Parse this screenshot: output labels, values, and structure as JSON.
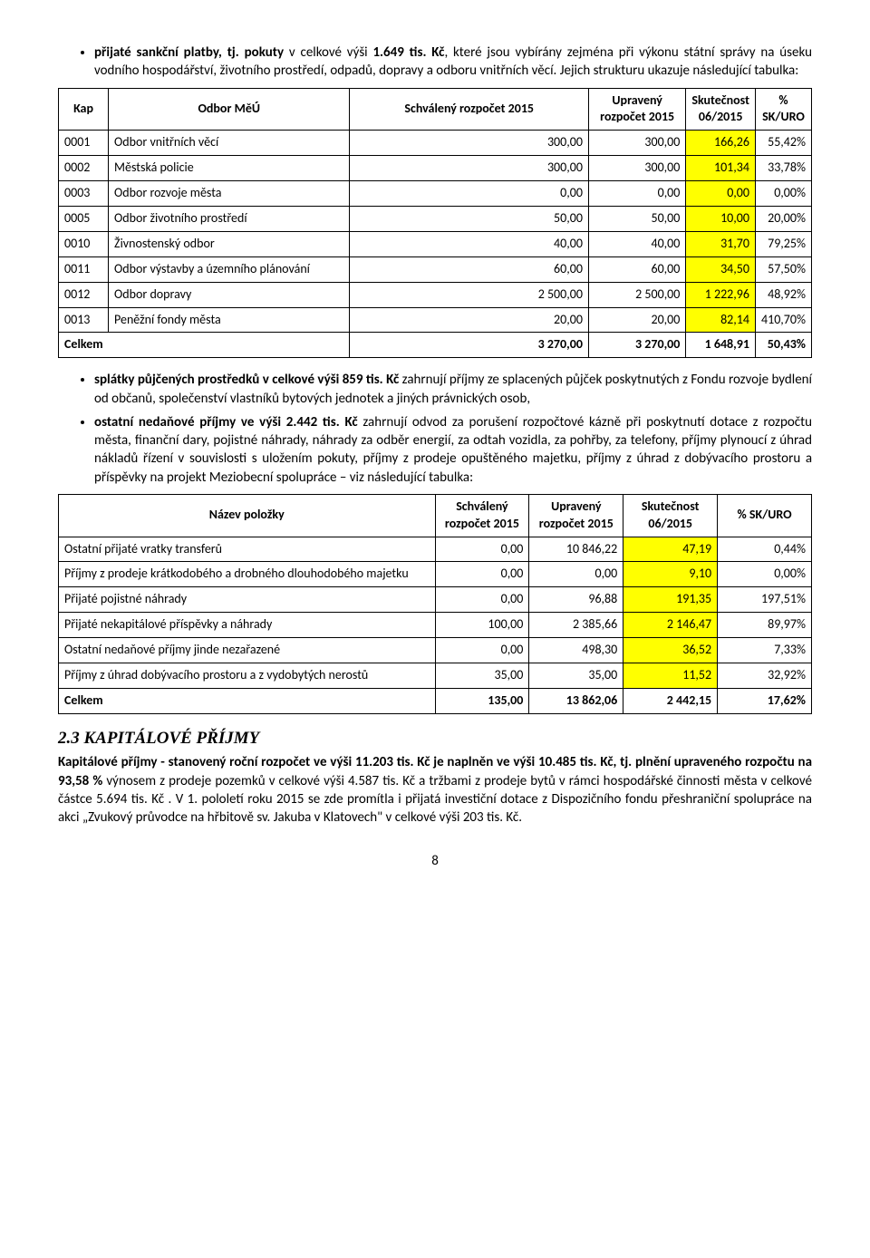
{
  "bullet1": {
    "strong": "přijaté sankční platby, tj. pokuty",
    "mid": " v celkové výši ",
    "amount": "1.649 tis. Kč",
    "rest": ", které jsou vybírány zejména při výkonu státní správy na úseku vodního hospodářství, životního prostředí, odpadů, dopravy a odboru vnitřních věcí. Jejich strukturu ukazuje následující tabulka:"
  },
  "table1": {
    "headers": [
      "Kap",
      "Odbor MěÚ",
      "Schválený rozpočet 2015",
      "Upravený rozpočet 2015",
      "Skutečnost 06/2015",
      "% SK/URO"
    ],
    "rows": [
      {
        "c": [
          "0001",
          "Odbor vnitřních věcí",
          "300,00",
          "300,00",
          "166,26",
          "55,42%"
        ]
      },
      {
        "c": [
          "0002",
          "Městská policie",
          "300,00",
          "300,00",
          "101,34",
          "33,78%"
        ]
      },
      {
        "c": [
          "0003",
          "Odbor rozvoje města",
          "0,00",
          "0,00",
          "0,00",
          "0,00%"
        ]
      },
      {
        "c": [
          "0005",
          "Odbor životního prostředí",
          "50,00",
          "50,00",
          "10,00",
          "20,00%"
        ]
      },
      {
        "c": [
          "0010",
          "Živnostenský odbor",
          "40,00",
          "40,00",
          "31,70",
          "79,25%"
        ]
      },
      {
        "c": [
          "0011",
          "Odbor výstavby a územního plánování",
          "60,00",
          "60,00",
          "34,50",
          "57,50%"
        ]
      },
      {
        "c": [
          "0012",
          "Odbor dopravy",
          "2 500,00",
          "2 500,00",
          "1 222,96",
          "48,92%"
        ]
      },
      {
        "c": [
          "0013",
          "Peněžní fondy města",
          "20,00",
          "20,00",
          "82,14",
          "410,70%"
        ]
      }
    ],
    "total": {
      "c": [
        "",
        "Celkem",
        "3 270,00",
        "3 270,00",
        "1 648,91",
        "50,43%"
      ]
    }
  },
  "bullet2": {
    "strong": "splátky půjčených prostředků v celkové výši 859 tis. Kč",
    "rest": " zahrnují příjmy ze splacených půjček poskytnutých z Fondu rozvoje bydlení od občanů, společenství vlastníků bytových jednotek a jiných právnických osob,"
  },
  "bullet3": {
    "strong": "ostatní nedaňové příjmy ve výši 2.442 tis. Kč",
    "rest": " zahrnují odvod za porušení rozpočtové kázně při poskytnutí dotace z rozpočtu města, finanční dary, pojistné náhrady, náhrady za odběr energií, za odtah vozidla, za pohřby, za telefony, příjmy plynoucí z úhrad nákladů řízení v souvislosti s uložením pokuty, příjmy z prodeje opuštěného majetku, příjmy z úhrad z dobývacího prostoru a příspěvky na projekt Meziobecní spolupráce – viz následující tabulka:"
  },
  "table2": {
    "headers": [
      "Název položky",
      "Schválený rozpočet 2015",
      "Upravený rozpočet 2015",
      "Skutečnost 06/2015",
      "% SK/URO"
    ],
    "rows": [
      {
        "c": [
          "Ostatní přijaté vratky transferů",
          "0,00",
          "10 846,22",
          "47,19",
          "0,44%"
        ]
      },
      {
        "c": [
          "Příjmy z prodeje krátkodobého a drobného dlouhodobého majetku",
          "0,00",
          "0,00",
          "9,10",
          "0,00%"
        ]
      },
      {
        "c": [
          "Přijaté pojistné náhrady",
          "0,00",
          "96,88",
          "191,35",
          "197,51%"
        ]
      },
      {
        "c": [
          "Přijaté nekapitálové příspěvky a náhrady",
          "100,00",
          "2 385,66",
          "2 146,47",
          "89,97%"
        ]
      },
      {
        "c": [
          "Ostatní nedaňové příjmy jinde nezařazené",
          "0,00",
          "498,30",
          "36,52",
          "7,33%"
        ]
      },
      {
        "c": [
          "Příjmy z úhrad dobývacího prostoru a z vydobytých nerostů",
          "35,00",
          "35,00",
          "11,52",
          "32,92%"
        ]
      }
    ],
    "total": {
      "c": [
        "Celkem",
        "135,00",
        "13 862,06",
        "2 442,15",
        "17,62%"
      ]
    }
  },
  "section": {
    "heading": "2.3 KAPITÁLOVÉ PŘÍJMY",
    "p": {
      "b1": "Kapitálové příjmy - stanovený roční rozpočet ve výši 11.203 tis. Kč je naplněn ve výši 10.485 tis. Kč,  tj. plnění upraveného rozpočtu na 93,58 %",
      "rest": " výnosem z prodeje pozemků  v celkové výši 4.587 tis. Kč a tržbami z prodeje bytů v rámci hospodářské činnosti města v celkové částce 5.694 tis. Kč . V 1. pololetí roku 2015 se zde promítla i přijatá investiční dotace z Dispozičního fondu přeshraniční spolupráce na akci „Zvukový průvodce na hřbitově sv. Jakuba v Klatovech\" v celkové výši 203 tis. Kč."
    }
  },
  "pageNum": "8",
  "highlight_color": "#ffff00"
}
